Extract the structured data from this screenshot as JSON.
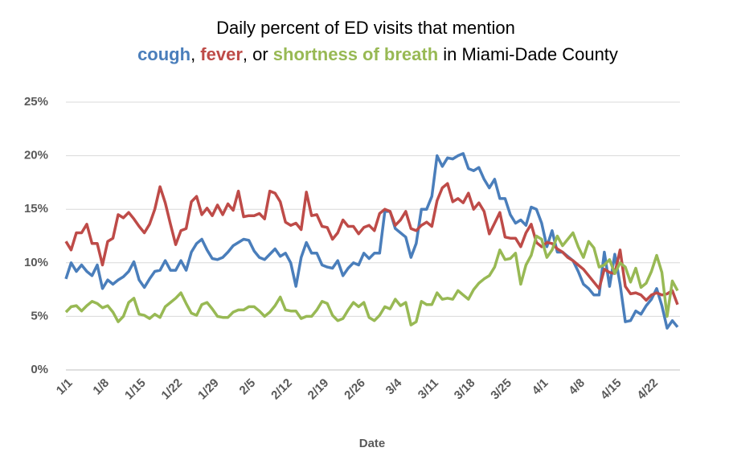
{
  "chart_data": {
    "type": "line",
    "title": "Daily percent of ED visits that mention",
    "title_connectors": [
      ",  ",
      ", or ",
      " in Miami-Dade County"
    ],
    "x_label": "Date",
    "categories": [
      "1/1",
      null,
      null,
      null,
      null,
      null,
      null,
      "1/8",
      null,
      null,
      null,
      null,
      null,
      null,
      "1/15",
      null,
      null,
      null,
      null,
      null,
      null,
      "1/22",
      null,
      null,
      null,
      null,
      null,
      null,
      "1/29",
      null,
      null,
      null,
      null,
      null,
      null,
      "2/5",
      null,
      null,
      null,
      null,
      null,
      null,
      "2/12",
      null,
      null,
      null,
      null,
      null,
      null,
      "2/19",
      null,
      null,
      null,
      null,
      null,
      null,
      "2/26",
      null,
      null,
      null,
      null,
      null,
      null,
      "3/4",
      null,
      null,
      null,
      null,
      null,
      null,
      "3/11",
      null,
      null,
      null,
      null,
      null,
      null,
      "3/18",
      null,
      null,
      null,
      null,
      null,
      null,
      "3/25",
      null,
      null,
      null,
      null,
      null,
      null,
      "4/1",
      null,
      null,
      null,
      null,
      null,
      null,
      "4/8",
      null,
      null,
      null,
      null,
      null,
      null,
      "4/15",
      null,
      null,
      null,
      null,
      null,
      null,
      "4/22",
      null,
      null,
      null,
      null,
      null
    ],
    "series": [
      {
        "name": "cough",
        "color": "#4a7ebb",
        "values": [
          8.5,
          10,
          9.2,
          9.8,
          9.2,
          8.8,
          9.8,
          7.6,
          8.4,
          8,
          8.4,
          8.7,
          9.2,
          10.1,
          8.4,
          7.7,
          8.5,
          9.2,
          9.3,
          10.2,
          9.3,
          9.3,
          10.2,
          9.3,
          11,
          11.8,
          12.2,
          11.2,
          10.4,
          10.3,
          10.5,
          11,
          11.6,
          11.9,
          12.2,
          12.1,
          11.1,
          10.5,
          10.3,
          10.8,
          11.3,
          10.6,
          10.9,
          10,
          7.8,
          10.5,
          11.9,
          10.9,
          10.9,
          9.8,
          9.6,
          9.5,
          10.2,
          8.8,
          9.5,
          10,
          9.8,
          10.9,
          10.4,
          10.9,
          10.9,
          14.8,
          14.8,
          13.2,
          12.8,
          12.4,
          10.5,
          11.8,
          15,
          15,
          16.2,
          20,
          19,
          19.8,
          19.7,
          20,
          20.2,
          18.8,
          18.6,
          18.9,
          17.8,
          17,
          17.8,
          16,
          16,
          14.5,
          13.7,
          14,
          13.5,
          15.2,
          15,
          13.7,
          11.5,
          13,
          11,
          11,
          10.6,
          10.2,
          9.2,
          8,
          7.6,
          7,
          7,
          11,
          7.8,
          10.8,
          8,
          4.5,
          4.6,
          5.5,
          5.2,
          6,
          6.6,
          7.6,
          6,
          3.9,
          4.6,
          4
        ]
      },
      {
        "name": "fever",
        "color": "#be4b48",
        "values": [
          12,
          11.2,
          12.8,
          12.8,
          13.6,
          11.8,
          11.8,
          9.8,
          12,
          12.3,
          14.5,
          14.2,
          14.7,
          14.1,
          13.4,
          12.8,
          13.6,
          15,
          17.1,
          15.6,
          13.6,
          11.7,
          13,
          13.2,
          15.7,
          16.2,
          14.5,
          15.1,
          14.4,
          15.4,
          14.5,
          15.5,
          14.9,
          16.7,
          14.3,
          14.4,
          14.4,
          14.6,
          14.1,
          16.7,
          16.5,
          15.7,
          13.8,
          13.5,
          13.7,
          13.1,
          16.6,
          14.4,
          14.5,
          13.4,
          13.3,
          12.2,
          12.8,
          14,
          13.4,
          13.4,
          12.7,
          13.3,
          13.5,
          13,
          14.6,
          15,
          14.8,
          13.5,
          14,
          14.8,
          13.2,
          13,
          13.5,
          13.8,
          13.4,
          15.8,
          17,
          17.4,
          15.7,
          16,
          15.6,
          16.5,
          15,
          15.6,
          14.8,
          12.7,
          13.7,
          14.7,
          12.4,
          12.3,
          12.3,
          11.5,
          12.8,
          13.6,
          11.9,
          11.5,
          11.9,
          11.8,
          11.3,
          11,
          10.5,
          10.2,
          9.8,
          9.4,
          8.8,
          8.2,
          7.6,
          9.4,
          9.1,
          9,
          11.2,
          7.8,
          7.1,
          7.2,
          7,
          6.5,
          7,
          7.2,
          7,
          7.1,
          7.4,
          6.1
        ]
      },
      {
        "name": "shortness of breath",
        "color": "#98b954",
        "values": [
          5.4,
          5.9,
          6,
          5.5,
          6,
          6.4,
          6.2,
          5.8,
          6,
          5.4,
          4.5,
          5,
          6.3,
          6.7,
          5.2,
          5.1,
          4.8,
          5.2,
          4.9,
          5.9,
          6.3,
          6.7,
          7.2,
          6.2,
          5.3,
          5.1,
          6.1,
          6.3,
          5.7,
          5,
          4.9,
          4.9,
          5.4,
          5.6,
          5.6,
          5.9,
          5.9,
          5.5,
          5,
          5.4,
          6,
          6.8,
          5.6,
          5.5,
          5.5,
          4.8,
          5,
          5,
          5.6,
          6.4,
          6.2,
          5.1,
          4.6,
          4.8,
          5.6,
          6.3,
          5.9,
          6.3,
          4.9,
          4.6,
          5.1,
          5.9,
          5.7,
          6.6,
          6,
          6.3,
          4.2,
          4.5,
          6.4,
          6.1,
          6.1,
          7.2,
          6.6,
          6.7,
          6.6,
          7.4,
          7,
          6.6,
          7.5,
          8.1,
          8.5,
          8.8,
          9.6,
          11.2,
          10.3,
          10.4,
          10.9,
          8,
          9.8,
          10.7,
          12.5,
          12.2,
          10.5,
          11.2,
          12.5,
          11.6,
          12.2,
          12.8,
          11.5,
          10.5,
          12,
          11.4,
          9.6,
          9.8,
          10.3,
          9,
          10,
          9.6,
          8.2,
          9.5,
          7.7,
          8.1,
          9.2,
          10.7,
          9.1,
          5,
          8.3,
          7.4
        ]
      }
    ],
    "ylim": [
      0,
      25
    ],
    "yticks": [
      {
        "value": 0,
        "label": "0%"
      },
      {
        "value": 5,
        "label": "5%"
      },
      {
        "value": 10,
        "label": "10%"
      },
      {
        "value": 15,
        "label": "15%"
      },
      {
        "value": 20,
        "label": "20%"
      },
      {
        "value": 25,
        "label": "25%"
      }
    ],
    "grid": true
  }
}
